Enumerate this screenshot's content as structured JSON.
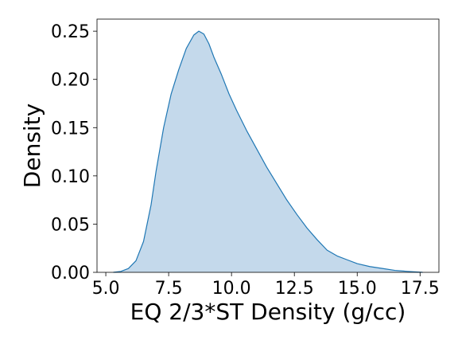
{
  "chart_data": {
    "type": "area",
    "title": "",
    "xlabel": "EQ 2/3*ST Density (g/cc)",
    "ylabel": "Density",
    "xlim": [
      4.65,
      18.25
    ],
    "ylim": [
      0.0,
      0.2625
    ],
    "xticks": [
      5.0,
      7.5,
      10.0,
      12.5,
      15.0,
      17.5
    ],
    "xtick_labels": [
      "5.0",
      "7.5",
      "10.0",
      "12.5",
      "15.0",
      "17.5"
    ],
    "yticks": [
      0.0,
      0.05,
      0.1,
      0.15,
      0.2,
      0.25
    ],
    "ytick_labels": [
      "0.00",
      "0.05",
      "0.10",
      "0.15",
      "0.20",
      "0.25"
    ],
    "grid": false,
    "series": [
      {
        "line_color": "#1f77b4",
        "fill_color": "#c4d9eb",
        "x": [
          5.3,
          5.6,
          5.9,
          6.2,
          6.5,
          6.8,
          7.0,
          7.3,
          7.6,
          7.9,
          8.2,
          8.5,
          8.7,
          8.9,
          9.1,
          9.3,
          9.6,
          9.9,
          10.2,
          10.6,
          11.0,
          11.4,
          11.8,
          12.2,
          12.6,
          13.0,
          13.4,
          13.8,
          14.2,
          14.6,
          15.0,
          15.5,
          16.0,
          16.5,
          17.0,
          17.6
        ],
        "y": [
          0.0,
          0.001,
          0.004,
          0.012,
          0.032,
          0.07,
          0.105,
          0.15,
          0.185,
          0.21,
          0.232,
          0.246,
          0.25,
          0.247,
          0.237,
          0.223,
          0.205,
          0.185,
          0.168,
          0.147,
          0.128,
          0.109,
          0.092,
          0.075,
          0.06,
          0.046,
          0.034,
          0.023,
          0.017,
          0.013,
          0.009,
          0.006,
          0.004,
          0.002,
          0.001,
          0.0
        ]
      }
    ]
  }
}
